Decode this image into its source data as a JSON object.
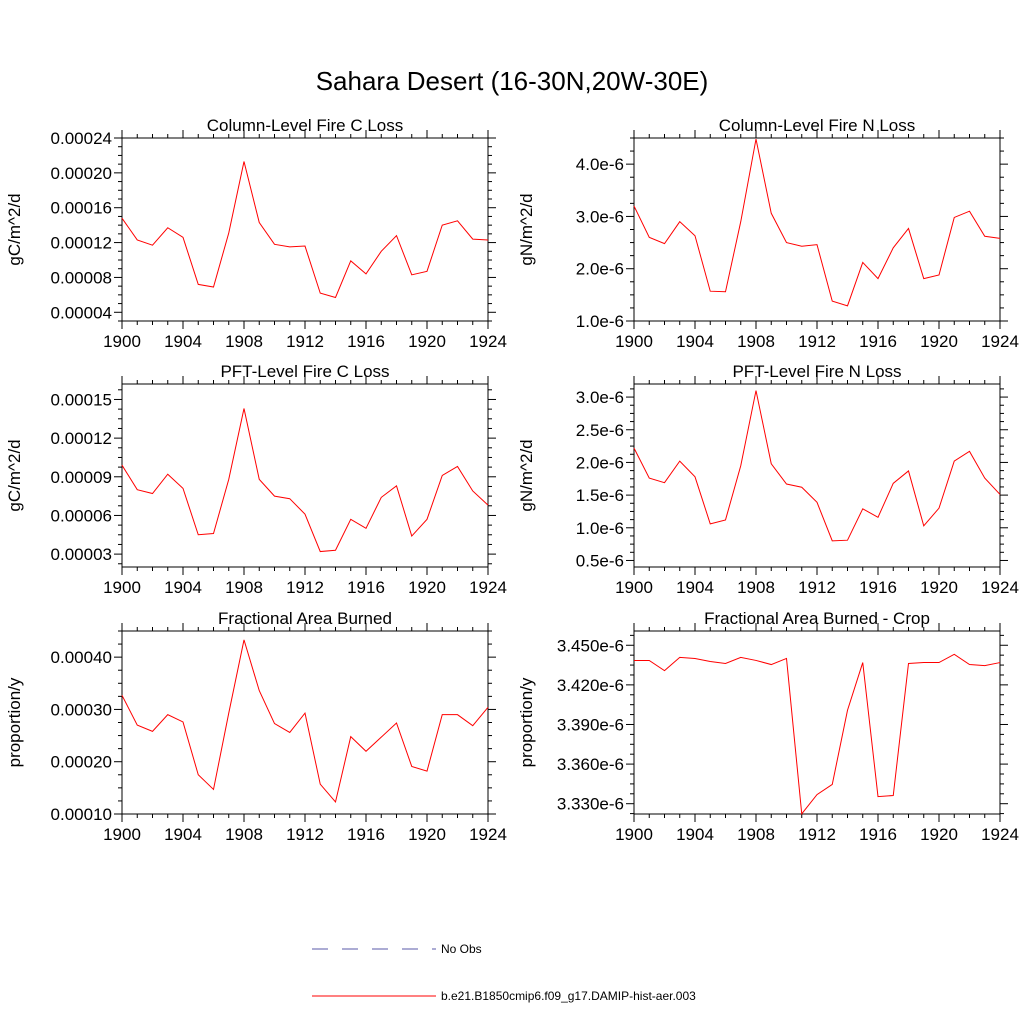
{
  "figure": {
    "title": "Sahara Desert (16-30N,20W-30E)"
  },
  "colors": {
    "series": "#ff0000",
    "obs": "#5a5aa8",
    "axis": "#000000"
  },
  "legend": {
    "position": "bottom-center",
    "entries": [
      {
        "label": "No Obs",
        "style": "dashed",
        "color": "#5a5aa8"
      },
      {
        "label": "b.e21.B1850cmip6.f09_g17.DAMIP-hist-aer.003",
        "style": "solid",
        "color": "#ff0000"
      }
    ]
  },
  "chart_data": [
    {
      "type": "line",
      "title": "Column-Level Fire C Loss",
      "xlabel": "",
      "ylabel": "gC/m^2/d",
      "xlim": [
        1900,
        1924
      ],
      "ylim": [
        3e-05,
        0.00024
      ],
      "xticks": [
        1900,
        1904,
        1908,
        1912,
        1916,
        1920,
        1924
      ],
      "xtick_labels": [
        "1900",
        "1904",
        "1908",
        "1912",
        "1916",
        "1920",
        "1924"
      ],
      "yticks": [
        4e-05,
        8e-05,
        0.00012,
        0.00016,
        0.0002,
        0.00024
      ],
      "ytick_labels": [
        "0.00004",
        "0.00008",
        "0.00012",
        "0.00016",
        "0.00020",
        "0.00024"
      ],
      "grid": false,
      "x": [
        1900,
        1901,
        1902,
        1903,
        1904,
        1905,
        1906,
        1907,
        1908,
        1909,
        1910,
        1911,
        1912,
        1913,
        1914,
        1915,
        1916,
        1917,
        1918,
        1919,
        1920,
        1921,
        1922,
        1923,
        1924
      ],
      "series": [
        {
          "values": [
            0.000148,
            0.000123,
            0.000117,
            0.000137,
            0.000126,
            7.2e-05,
            6.9e-05,
            0.000131,
            0.000213,
            0.000143,
            0.000118,
            0.000115,
            0.000116,
            6.2e-05,
            5.7e-05,
            9.9e-05,
            8.4e-05,
            0.00011,
            0.000128,
            8.3e-05,
            8.7e-05,
            0.00014,
            0.000145,
            0.000124,
            0.000123
          ]
        }
      ]
    },
    {
      "type": "line",
      "title": "Column-Level Fire N Loss",
      "xlabel": "",
      "ylabel": "gN/m^2/d",
      "xlim": [
        1900,
        1924
      ],
      "ylim": [
        1e-06,
        4.5e-06
      ],
      "xticks": [
        1900,
        1904,
        1908,
        1912,
        1916,
        1920,
        1924
      ],
      "xtick_labels": [
        "1900",
        "1904",
        "1908",
        "1912",
        "1916",
        "1920",
        "1924"
      ],
      "yticks": [
        1e-06,
        2e-06,
        3e-06,
        4e-06
      ],
      "ytick_labels": [
        "1.0e-6",
        "2.0e-6",
        "3.0e-6",
        "4.0e-6"
      ],
      "grid": false,
      "x": [
        1900,
        1901,
        1902,
        1903,
        1904,
        1905,
        1906,
        1907,
        1908,
        1909,
        1910,
        1911,
        1912,
        1913,
        1914,
        1915,
        1916,
        1917,
        1918,
        1919,
        1920,
        1921,
        1922,
        1923,
        1924
      ],
      "series": [
        {
          "values": [
            3.2e-06,
            2.6e-06,
            2.48e-06,
            2.9e-06,
            2.63e-06,
            1.57e-06,
            1.56e-06,
            2.9e-06,
            4.48e-06,
            3.06e-06,
            2.5e-06,
            2.43e-06,
            2.46e-06,
            1.38e-06,
            1.29e-06,
            2.12e-06,
            1.81e-06,
            2.4e-06,
            2.77e-06,
            1.81e-06,
            1.88e-06,
            2.98e-06,
            3.1e-06,
            2.62e-06,
            2.58e-06
          ]
        }
      ]
    },
    {
      "type": "line",
      "title": "PFT-Level Fire C Loss",
      "xlabel": "",
      "ylabel": "gC/m^2/d",
      "xlim": [
        1900,
        1924
      ],
      "ylim": [
        2e-05,
        0.000162
      ],
      "xticks": [
        1900,
        1904,
        1908,
        1912,
        1916,
        1920,
        1924
      ],
      "xtick_labels": [
        "1900",
        "1904",
        "1908",
        "1912",
        "1916",
        "1920",
        "1924"
      ],
      "yticks": [
        3e-05,
        6e-05,
        9e-05,
        0.00012,
        0.00015
      ],
      "ytick_labels": [
        "0.00003",
        "0.00006",
        "0.00009",
        "0.00012",
        "0.00015"
      ],
      "grid": false,
      "x": [
        1900,
        1901,
        1902,
        1903,
        1904,
        1905,
        1906,
        1907,
        1908,
        1909,
        1910,
        1911,
        1912,
        1913,
        1914,
        1915,
        1916,
        1917,
        1918,
        1919,
        1920,
        1921,
        1922,
        1923,
        1924
      ],
      "series": [
        {
          "values": [
            9.9e-05,
            8e-05,
            7.7e-05,
            9.2e-05,
            8.1e-05,
            4.5e-05,
            4.6e-05,
            8.8e-05,
            0.000143,
            8.8e-05,
            7.5e-05,
            7.3e-05,
            6.1e-05,
            3.2e-05,
            3.3e-05,
            5.7e-05,
            5e-05,
            7.4e-05,
            8.3e-05,
            4.4e-05,
            5.7e-05,
            9.1e-05,
            9.8e-05,
            7.9e-05,
            6.8e-05
          ]
        }
      ]
    },
    {
      "type": "line",
      "title": "PFT-Level Fire N Loss",
      "xlabel": "",
      "ylabel": "gN/m^2/d",
      "xlim": [
        1900,
        1924
      ],
      "ylim": [
        4e-07,
        3.2e-06
      ],
      "xticks": [
        1900,
        1904,
        1908,
        1912,
        1916,
        1920,
        1924
      ],
      "xtick_labels": [
        "1900",
        "1904",
        "1908",
        "1912",
        "1916",
        "1920",
        "1924"
      ],
      "yticks": [
        5e-07,
        1e-06,
        1.5e-06,
        2e-06,
        2.5e-06,
        3e-06
      ],
      "ytick_labels": [
        "0.5e-6",
        "1.0e-6",
        "1.5e-6",
        "2.0e-6",
        "2.5e-6",
        "3.0e-6"
      ],
      "grid": false,
      "x": [
        1900,
        1901,
        1902,
        1903,
        1904,
        1905,
        1906,
        1907,
        1908,
        1909,
        1910,
        1911,
        1912,
        1913,
        1914,
        1915,
        1916,
        1917,
        1918,
        1919,
        1920,
        1921,
        1922,
        1923,
        1924
      ],
      "series": [
        {
          "values": [
            2.22e-06,
            1.76e-06,
            1.69e-06,
            2.02e-06,
            1.78e-06,
            1.06e-06,
            1.12e-06,
            1.95e-06,
            3.1e-06,
            1.98e-06,
            1.67e-06,
            1.62e-06,
            1.39e-06,
            8e-07,
            8.1e-07,
            1.29e-06,
            1.16e-06,
            1.68e-06,
            1.87e-06,
            1.03e-06,
            1.3e-06,
            2.02e-06,
            2.17e-06,
            1.76e-06,
            1.51e-06
          ]
        }
      ]
    },
    {
      "type": "line",
      "title": "Fractional Area Burned",
      "xlabel": "",
      "ylabel": "proportion/y",
      "xlim": [
        1900,
        1924
      ],
      "ylim": [
        0.0001,
        0.00045
      ],
      "xticks": [
        1900,
        1904,
        1908,
        1912,
        1916,
        1920,
        1924
      ],
      "xtick_labels": [
        "1900",
        "1904",
        "1908",
        "1912",
        "1916",
        "1920",
        "1924"
      ],
      "yticks": [
        0.0001,
        0.0002,
        0.0003,
        0.0004
      ],
      "ytick_labels": [
        "0.00010",
        "0.00020",
        "0.00030",
        "0.00040"
      ],
      "grid": false,
      "x": [
        1900,
        1901,
        1902,
        1903,
        1904,
        1905,
        1906,
        1907,
        1908,
        1909,
        1910,
        1911,
        1912,
        1913,
        1914,
        1915,
        1916,
        1917,
        1918,
        1919,
        1920,
        1921,
        1922,
        1923,
        1924
      ],
      "series": [
        {
          "values": [
            0.000327,
            0.00027,
            0.000258,
            0.00029,
            0.000276,
            0.000175,
            0.000147,
            0.000293,
            0.000433,
            0.000336,
            0.000273,
            0.000256,
            0.000293,
            0.000157,
            0.000123,
            0.000248,
            0.00022,
            0.000247,
            0.000274,
            0.000191,
            0.000182,
            0.00029,
            0.00029,
            0.000269,
            0.000304
          ]
        }
      ]
    },
    {
      "type": "line",
      "title": "Fractional Area Burned - Crop",
      "xlabel": "",
      "ylabel": "proportion/y",
      "xlim": [
        1900,
        1924
      ],
      "ylim": [
        3.3222e-06,
        3.4608e-06
      ],
      "xticks": [
        1900,
        1904,
        1908,
        1912,
        1916,
        1920,
        1924
      ],
      "xtick_labels": [
        "1900",
        "1904",
        "1908",
        "1912",
        "1916",
        "1920",
        "1924"
      ],
      "yticks": [
        3.33e-06,
        3.36e-06,
        3.39e-06,
        3.42e-06,
        3.45e-06
      ],
      "ytick_labels": [
        "3.330e-6",
        "3.360e-6",
        "3.390e-6",
        "3.420e-6",
        "3.450e-6"
      ],
      "grid": false,
      "x": [
        1900,
        1901,
        1902,
        1903,
        1904,
        1905,
        1906,
        1907,
        1908,
        1909,
        1910,
        1911,
        1912,
        1913,
        1914,
        1915,
        1916,
        1917,
        1918,
        1919,
        1920,
        1921,
        1922,
        1923,
        1924
      ],
      "series": [
        {
          "values": [
            3.4385e-06,
            3.4385e-06,
            3.4308e-06,
            3.4408e-06,
            3.44e-06,
            3.4377e-06,
            3.4362e-06,
            3.4408e-06,
            3.4385e-06,
            3.4354e-06,
            3.44e-06,
            3.3223e-06,
            3.3369e-06,
            3.3446e-06,
            3.4008e-06,
            3.4369e-06,
            3.3354e-06,
            3.3362e-06,
            3.4362e-06,
            3.4369e-06,
            3.4369e-06,
            3.4431e-06,
            3.4354e-06,
            3.4346e-06,
            3.4369e-06
          ]
        }
      ]
    }
  ]
}
